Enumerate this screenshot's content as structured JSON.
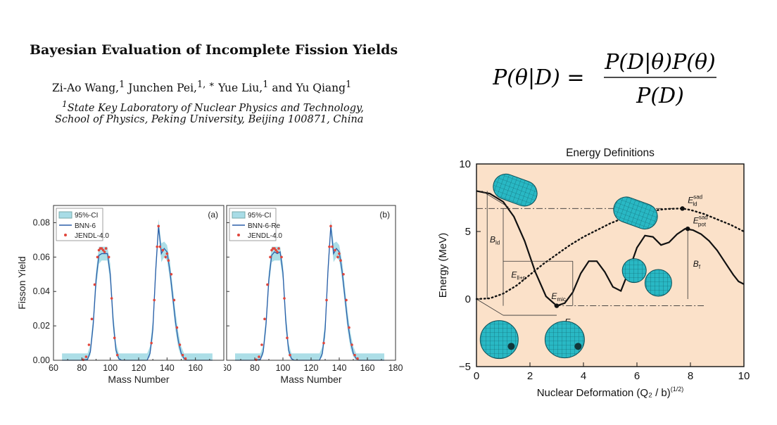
{
  "paper": {
    "title": "Bayesian Evaluation of Incomplete Fission Yields",
    "authors": [
      {
        "name": "Zi-Ao Wang,",
        "sup": "1"
      },
      {
        "name": "Junchen Pei,",
        "sup": "1, ∗"
      },
      {
        "name": "Yue Liu,",
        "sup": "1"
      },
      {
        "name": "and Yu Qiang",
        "sup": "1"
      }
    ],
    "affiliation_sup": "1",
    "affiliation_line1": "State Key Laboratory of Nuclear Physics and Technology,",
    "affiliation_line2": "School of Physics, Peking University, Beijing 100871, China"
  },
  "equation": {
    "lhs": "P(θ|D) =",
    "numerator": "P(D|θ)P(θ)",
    "denominator": "P(D)"
  },
  "chart_data": [
    {
      "type": "line",
      "panel_label": "(a)",
      "xlabel": "Mass Number",
      "ylabel": "Fisson Yield",
      "xlim": [
        60,
        180
      ],
      "ylim": [
        0.0,
        0.09
      ],
      "xticks": [
        "60",
        "80",
        "100",
        "120",
        "140",
        "160"
      ],
      "yticks": [
        "0.00",
        "0.02",
        "0.04",
        "0.06",
        "0.08"
      ],
      "legend_position": "top-left",
      "series": [
        {
          "name": "95%-CI",
          "kind": "band",
          "color": "#a8dce6",
          "x": [
            66,
            80,
            84,
            86,
            88,
            90,
            92,
            94,
            96,
            98,
            100,
            102,
            104,
            106,
            108,
            112,
            120,
            126,
            128,
            130,
            132,
            134,
            136,
            138,
            140,
            142,
            144,
            146,
            148,
            150,
            152,
            154,
            160,
            172
          ],
          "lower": [
            0.0,
            0.0,
            0.0,
            0.003,
            0.017,
            0.041,
            0.056,
            0.058,
            0.058,
            0.058,
            0.045,
            0.018,
            0.003,
            0.0,
            0.0,
            0.0,
            0.0,
            0.0,
            0.002,
            0.013,
            0.046,
            0.074,
            0.057,
            0.06,
            0.058,
            0.047,
            0.032,
            0.017,
            0.007,
            0.002,
            0.0,
            0.0,
            0.0,
            0.0
          ],
          "upper": [
            0.004,
            0.004,
            0.004,
            0.009,
            0.026,
            0.052,
            0.066,
            0.066,
            0.066,
            0.066,
            0.056,
            0.029,
            0.01,
            0.004,
            0.004,
            0.004,
            0.004,
            0.004,
            0.008,
            0.024,
            0.057,
            0.082,
            0.068,
            0.069,
            0.067,
            0.058,
            0.043,
            0.028,
            0.016,
            0.008,
            0.004,
            0.004,
            0.004,
            0.004
          ]
        },
        {
          "name": "BNN-6",
          "kind": "line",
          "color": "#2c5ea8",
          "x": [
            66,
            80,
            84,
            86,
            88,
            90,
            92,
            94,
            96,
            98,
            100,
            102,
            104,
            106,
            108,
            112,
            120,
            126,
            128,
            130,
            132,
            134,
            136,
            138,
            140,
            142,
            144,
            146,
            148,
            150,
            152,
            154,
            160,
            172
          ],
          "y": [
            0.0,
            0.0,
            0.0005,
            0.005,
            0.021,
            0.047,
            0.061,
            0.062,
            0.062,
            0.062,
            0.05,
            0.023,
            0.006,
            0.001,
            0.0,
            0.0,
            0.0,
            0.0,
            0.004,
            0.018,
            0.052,
            0.078,
            0.062,
            0.065,
            0.063,
            0.052,
            0.037,
            0.022,
            0.011,
            0.004,
            0.001,
            0.0,
            0.0,
            0.0
          ]
        },
        {
          "name": "JENDL-4.0",
          "kind": "scatter",
          "color": "#e0463c",
          "x": [
            81,
            83,
            85,
            87,
            89,
            91,
            92,
            93,
            94,
            95,
            96,
            97,
            99,
            101,
            103,
            105,
            129,
            131,
            133,
            134,
            135,
            137,
            139,
            140,
            141,
            143,
            145,
            147,
            149,
            151,
            153
          ],
          "y": [
            0.0003,
            0.002,
            0.009,
            0.024,
            0.044,
            0.06,
            0.064,
            0.065,
            0.065,
            0.064,
            0.063,
            0.065,
            0.06,
            0.036,
            0.013,
            0.003,
            0.01,
            0.035,
            0.066,
            0.078,
            0.066,
            0.064,
            0.06,
            0.062,
            0.058,
            0.05,
            0.035,
            0.019,
            0.009,
            0.003,
            0.001
          ]
        }
      ]
    },
    {
      "type": "line",
      "panel_label": "(b)",
      "xlabel": "Mass Number",
      "ylabel": "",
      "xlim": [
        60,
        180
      ],
      "ylim": [
        0.0,
        0.09
      ],
      "xticks": [
        "60",
        "80",
        "100",
        "120",
        "140",
        "160",
        "180"
      ],
      "yticks": [],
      "legend_position": "top-left",
      "series": [
        {
          "name": "95%-CI",
          "kind": "band",
          "color": "#a8dce6",
          "x": [
            66,
            80,
            84,
            86,
            88,
            90,
            92,
            94,
            96,
            98,
            100,
            102,
            104,
            106,
            108,
            112,
            120,
            126,
            128,
            130,
            132,
            134,
            136,
            138,
            140,
            142,
            144,
            146,
            148,
            150,
            152,
            154,
            160,
            172
          ],
          "lower": [
            0.0,
            0.0,
            0.0,
            0.003,
            0.017,
            0.042,
            0.057,
            0.058,
            0.058,
            0.058,
            0.046,
            0.018,
            0.003,
            0.0,
            0.0,
            0.0,
            0.0,
            0.0,
            0.002,
            0.013,
            0.047,
            0.074,
            0.057,
            0.06,
            0.058,
            0.047,
            0.032,
            0.017,
            0.007,
            0.002,
            0.0,
            0.0,
            0.0,
            0.0
          ],
          "upper": [
            0.004,
            0.004,
            0.004,
            0.009,
            0.026,
            0.052,
            0.066,
            0.066,
            0.066,
            0.066,
            0.056,
            0.029,
            0.01,
            0.004,
            0.004,
            0.004,
            0.004,
            0.004,
            0.008,
            0.024,
            0.057,
            0.082,
            0.068,
            0.069,
            0.067,
            0.058,
            0.043,
            0.028,
            0.016,
            0.008,
            0.004,
            0.004,
            0.004,
            0.004
          ]
        },
        {
          "name": "BNN-6-Re",
          "kind": "line",
          "color": "#2c5ea8",
          "x": [
            66,
            80,
            84,
            86,
            88,
            90,
            92,
            94,
            96,
            98,
            100,
            102,
            104,
            106,
            108,
            112,
            120,
            126,
            128,
            130,
            132,
            134,
            136,
            138,
            140,
            142,
            144,
            146,
            148,
            150,
            152,
            154,
            160,
            172
          ],
          "y": [
            0.0,
            0.0,
            0.0005,
            0.005,
            0.021,
            0.047,
            0.061,
            0.063,
            0.062,
            0.063,
            0.051,
            0.023,
            0.006,
            0.001,
            0.0,
            0.0,
            0.0,
            0.0,
            0.004,
            0.018,
            0.052,
            0.078,
            0.062,
            0.065,
            0.063,
            0.052,
            0.037,
            0.022,
            0.011,
            0.004,
            0.001,
            0.0,
            0.0,
            0.0
          ]
        },
        {
          "name": "JENDL-4.0",
          "kind": "scatter",
          "color": "#e0463c",
          "x": [
            81,
            83,
            85,
            87,
            89,
            91,
            92,
            93,
            94,
            95,
            96,
            97,
            99,
            101,
            103,
            105,
            129,
            131,
            133,
            134,
            135,
            137,
            139,
            140,
            141,
            143,
            145,
            147,
            149,
            151,
            153
          ],
          "y": [
            0.0003,
            0.002,
            0.009,
            0.024,
            0.044,
            0.06,
            0.064,
            0.065,
            0.065,
            0.064,
            0.063,
            0.065,
            0.06,
            0.036,
            0.013,
            0.003,
            0.01,
            0.035,
            0.066,
            0.078,
            0.066,
            0.064,
            0.06,
            0.062,
            0.058,
            0.05,
            0.035,
            0.019,
            0.009,
            0.003,
            0.001
          ]
        }
      ]
    },
    {
      "type": "line",
      "title": "Energy Definitions",
      "xlabel": "Nuclear Deformation (Q₂ / b)",
      "xlabel_sup": "(1/2)",
      "ylabel": "Energy (MeV)",
      "xlim": [
        0,
        10
      ],
      "ylim": [
        -5,
        10
      ],
      "xticks": [
        "0",
        "2",
        "4",
        "6",
        "8",
        "10"
      ],
      "yticks": [
        "−5",
        "0",
        "5",
        "10"
      ],
      "background_color": "#fbe1c9",
      "series": [
        {
          "name": "",
          "kind": "solid",
          "x": [
            0,
            0.5,
            1.0,
            1.4,
            1.8,
            2.2,
            2.6,
            3.0,
            3.3,
            3.6,
            3.9,
            4.2,
            4.5,
            4.8,
            5.1,
            5.4,
            5.7,
            6.0,
            6.3,
            6.6,
            6.9,
            7.2,
            7.5,
            7.8,
            8.1,
            8.4,
            8.7,
            9.0,
            9.3,
            9.6,
            9.8,
            10.0
          ],
          "y": [
            8.0,
            7.8,
            7.2,
            6.1,
            4.3,
            2.0,
            0.2,
            -0.5,
            -0.3,
            0.5,
            1.9,
            2.8,
            2.8,
            2.0,
            0.9,
            0.6,
            2.1,
            3.8,
            4.7,
            4.6,
            4.0,
            4.2,
            4.8,
            5.2,
            5.1,
            4.8,
            4.3,
            3.6,
            2.7,
            1.8,
            1.3,
            1.1
          ]
        },
        {
          "name": "",
          "kind": "dotted",
          "x": [
            0,
            0.5,
            1.0,
            1.5,
            2.0,
            2.5,
            3.0,
            3.5,
            4.0,
            4.5,
            5.0,
            5.5,
            6.0,
            6.5,
            7.0,
            7.5,
            7.7,
            8.0,
            8.5,
            9.0,
            9.5,
            10.0
          ],
          "y": [
            0.0,
            0.05,
            0.4,
            1.0,
            1.8,
            2.6,
            3.3,
            4.0,
            4.6,
            5.1,
            5.6,
            6.0,
            6.3,
            6.5,
            6.65,
            6.7,
            6.7,
            6.6,
            6.3,
            5.9,
            5.5,
            5.0
          ]
        }
      ],
      "reference_levels": [
        {
          "y": 6.7,
          "x_from": 0,
          "x_to": 7.7
        },
        {
          "y": -0.5,
          "x_from": 2.9,
          "x_to": 8.5
        }
      ],
      "points": [
        {
          "x": 7.7,
          "y": 6.7
        },
        {
          "x": 3.0,
          "y": -0.5
        },
        {
          "x": 7.9,
          "y": 5.2
        }
      ],
      "annotations": [
        {
          "base": "B",
          "sub": "ld",
          "sup": ""
        },
        {
          "base": "E",
          "sub": "ll+p",
          "sup": ""
        },
        {
          "base": "E",
          "sub": "mic",
          "sup": ""
        },
        {
          "base": "E",
          "sub": "zp",
          "sup": ""
        },
        {
          "base": "E",
          "sub": "ld",
          "sup": "sad"
        },
        {
          "base": "E",
          "sub": "pot",
          "sup": "sad"
        },
        {
          "base": "B",
          "sub": "f",
          "sup": ""
        }
      ],
      "shapes": [
        "sphere",
        "deformed-sphere",
        "elongated-nucleus",
        "scission-nucleus",
        "elongated-nucleus-top"
      ],
      "shape_color": "#29b8c4"
    }
  ]
}
